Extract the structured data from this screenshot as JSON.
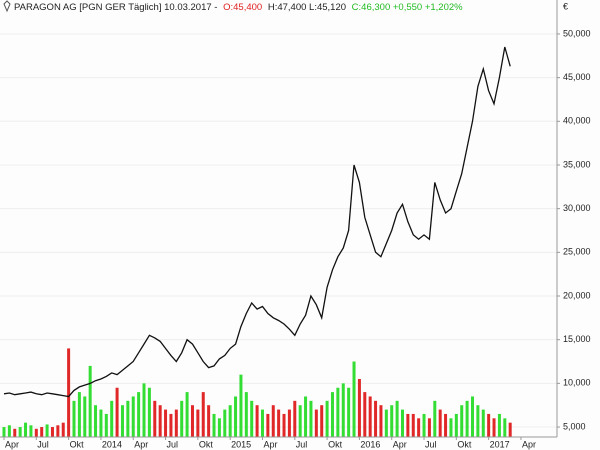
{
  "chart_data": {
    "type": "stock",
    "header": {
      "name": "PARAGON AG [PGN GER  Täglich] 10.03.2017 -",
      "open": "O:45,400",
      "high_low": "H:47,400 L:45,120",
      "close_change": "C:46,300 +0,550 +1,202%"
    },
    "ylabel": "€",
    "categories": [
      "Apr",
      null,
      null,
      null,
      null,
      null,
      "Jul",
      null,
      null,
      null,
      null,
      null,
      "Okt",
      null,
      null,
      null,
      null,
      null,
      "2014",
      null,
      null,
      null,
      null,
      null,
      "Apr",
      null,
      null,
      null,
      null,
      null,
      "Jul",
      null,
      null,
      null,
      null,
      null,
      "Okt",
      null,
      null,
      null,
      null,
      null,
      "2015",
      null,
      null,
      null,
      null,
      null,
      "Apr",
      null,
      null,
      null,
      null,
      null,
      "Jul",
      null,
      null,
      null,
      null,
      null,
      "Okt",
      null,
      null,
      null,
      null,
      null,
      "2016",
      null,
      null,
      null,
      null,
      null,
      "Apr",
      null,
      null,
      null,
      null,
      null,
      "Jul",
      null,
      null,
      null,
      null,
      null,
      "Okt",
      null,
      null,
      null,
      null,
      null,
      "2017",
      null,
      null,
      null,
      null,
      null,
      "Apr"
    ],
    "series": [
      {
        "type": "line",
        "color": "#111111",
        "values": [
          8800,
          8900,
          8700,
          8800,
          8900,
          9000,
          8800,
          8700,
          8900,
          8800,
          8700,
          8600,
          8500,
          9200,
          9600,
          9800,
          10000,
          10300,
          10500,
          10800,
          11200,
          11000,
          11500,
          12000,
          12500,
          13500,
          14500,
          15500,
          15200,
          14800,
          14000,
          13200,
          12500,
          13500,
          15000,
          14500,
          13500,
          12500,
          11800,
          12000,
          12800,
          13200,
          14000,
          14500,
          16500,
          18000,
          19200,
          18500,
          18800,
          18000,
          17500,
          17200,
          16800,
          16200,
          15500,
          16800,
          17800,
          20000,
          19000,
          17500,
          21000,
          23000,
          24500,
          25500,
          27500,
          35000,
          33000,
          29000,
          27000,
          25000,
          24500,
          26000,
          27500,
          29500,
          30500,
          28500,
          27000,
          26500,
          27000,
          26500,
          33000,
          31000,
          29500,
          30000,
          32000,
          34000,
          37000,
          40000,
          44000,
          46000,
          43500,
          42000,
          45000,
          48500,
          46300,
          null,
          null
        ]
      },
      {
        "type": "bar",
        "up_color": "#33dd33",
        "down_color": "#e02828",
        "values": [
          5000,
          5200,
          4800,
          5000,
          5500,
          5200,
          4800,
          5000,
          5300,
          5000,
          5200,
          5500,
          14000,
          8000,
          9000,
          8500,
          12000,
          7500,
          7000,
          6500,
          8000,
          9500,
          7500,
          8000,
          8500,
          9000,
          10000,
          9500,
          8000,
          7500,
          7000,
          6500,
          7000,
          8000,
          9000,
          7500,
          7000,
          9000,
          7500,
          6500,
          6000,
          7000,
          7500,
          8500,
          11000,
          9000,
          8000,
          7500,
          7000,
          6500,
          7500,
          7000,
          6500,
          7000,
          8000,
          7500,
          8500,
          8000,
          7000,
          7500,
          8000,
          9000,
          9500,
          10000,
          9500,
          12500,
          10500,
          9000,
          8500,
          8000,
          7500,
          7000,
          7500,
          8000,
          7000,
          6500,
          6500,
          6000,
          6500,
          6000,
          8000,
          7000,
          6500,
          6000,
          6500,
          7500,
          8000,
          8500,
          7500,
          7000,
          6500,
          6000,
          6500,
          6000,
          5500,
          null,
          null
        ]
      }
    ],
    "ylim": [
      3860,
      52970
    ],
    "yticks": [
      {
        "value": 5000,
        "label": "5,000"
      },
      {
        "value": 10000,
        "label": "10,000"
      },
      {
        "value": 15000,
        "label": "15,000"
      },
      {
        "value": 20000,
        "label": "20,000"
      },
      {
        "value": 25000,
        "label": "25,000"
      },
      {
        "value": 30000,
        "label": "30,000"
      },
      {
        "value": 35000,
        "label": "35,000"
      },
      {
        "value": 40000,
        "label": "40,000"
      },
      {
        "value": 45000,
        "label": "45,000"
      },
      {
        "value": 50000,
        "label": "50,000"
      }
    ],
    "grid": true
  }
}
